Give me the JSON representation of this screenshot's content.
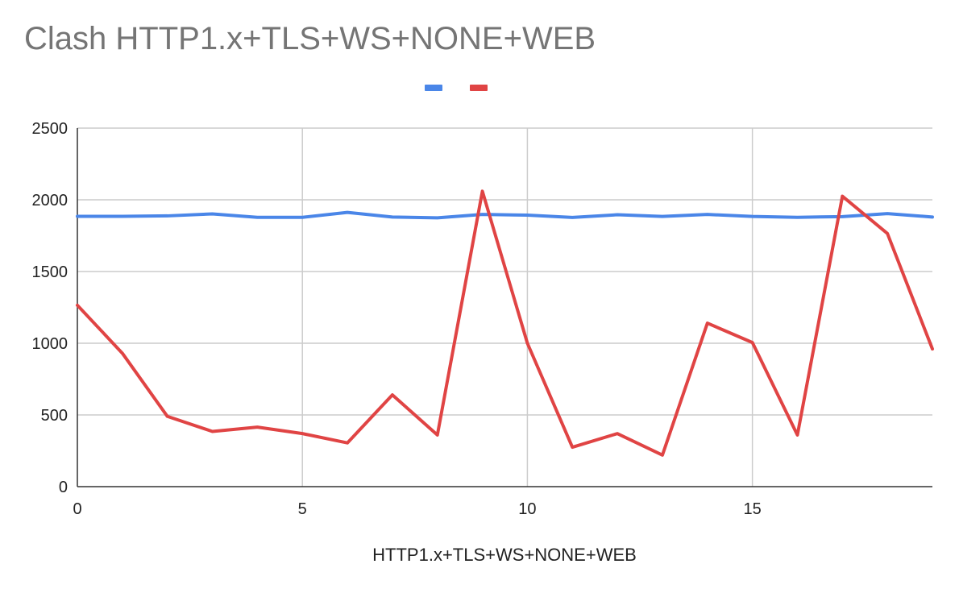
{
  "chart_data": {
    "type": "line",
    "title": "Clash HTTP1.x+TLS+WS+NONE+WEB",
    "xlabel": "HTTP1.x+TLS+WS+NONE+WEB",
    "ylabel": "",
    "xlim": [
      0,
      19
    ],
    "ylim": [
      0,
      2500
    ],
    "x_ticks": [
      0,
      5,
      10,
      15
    ],
    "y_ticks": [
      0,
      500,
      1000,
      1500,
      2000,
      2500
    ],
    "grid": true,
    "legend": "top-center",
    "x": [
      0,
      1,
      2,
      3,
      4,
      5,
      6,
      7,
      8,
      9,
      10,
      11,
      12,
      13,
      14,
      15,
      16,
      17,
      18,
      19
    ],
    "series": [
      {
        "name": "",
        "color": "#4a86e8",
        "values": [
          1885,
          1885,
          1888,
          1902,
          1878,
          1878,
          1912,
          1880,
          1874,
          1898,
          1893,
          1877,
          1896,
          1884,
          1898,
          1884,
          1878,
          1883,
          1904,
          1880
        ]
      },
      {
        "name": "",
        "color": "#e04444",
        "values": [
          1265,
          930,
          490,
          385,
          415,
          370,
          305,
          640,
          360,
          2060,
          1000,
          275,
          370,
          220,
          1140,
          1005,
          360,
          2025,
          1765,
          960
        ]
      }
    ]
  }
}
